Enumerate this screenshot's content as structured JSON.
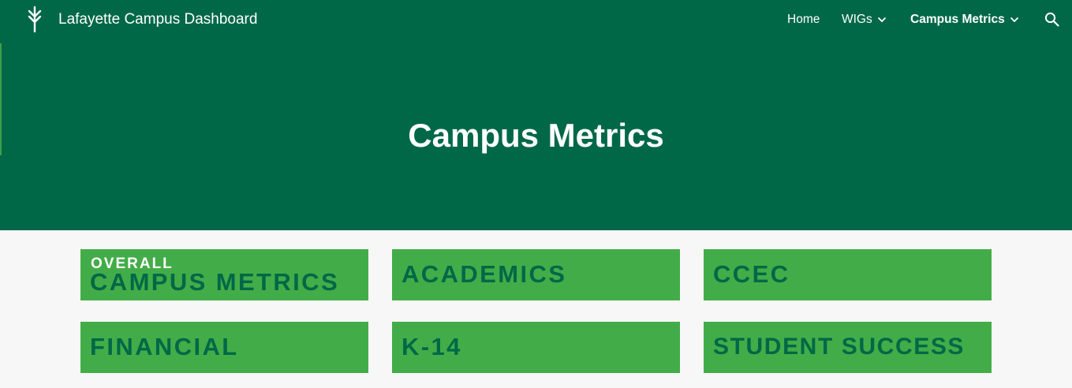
{
  "site": {
    "title": "Lafayette Campus Dashboard",
    "logo_icon": "wheat-sprout-icon"
  },
  "nav": {
    "home": "Home",
    "wigs": "WIGs",
    "campus_metrics": "Campus Metrics",
    "search_icon": "search-icon"
  },
  "page": {
    "title": "Campus Metrics"
  },
  "tiles": [
    {
      "sup": "OVERALL",
      "label": "CAMPUS METRICS"
    },
    {
      "label": "ACADEMICS"
    },
    {
      "label": "CCEC"
    },
    {
      "label": "FINANCIAL"
    },
    {
      "label": "K-14"
    },
    {
      "label": "STUDENT SUCCESS"
    }
  ],
  "colors": {
    "header_bg": "#006847",
    "tile_bg": "#42ad48",
    "tile_text": "#006847",
    "page_bg": "#f7f7f7"
  }
}
